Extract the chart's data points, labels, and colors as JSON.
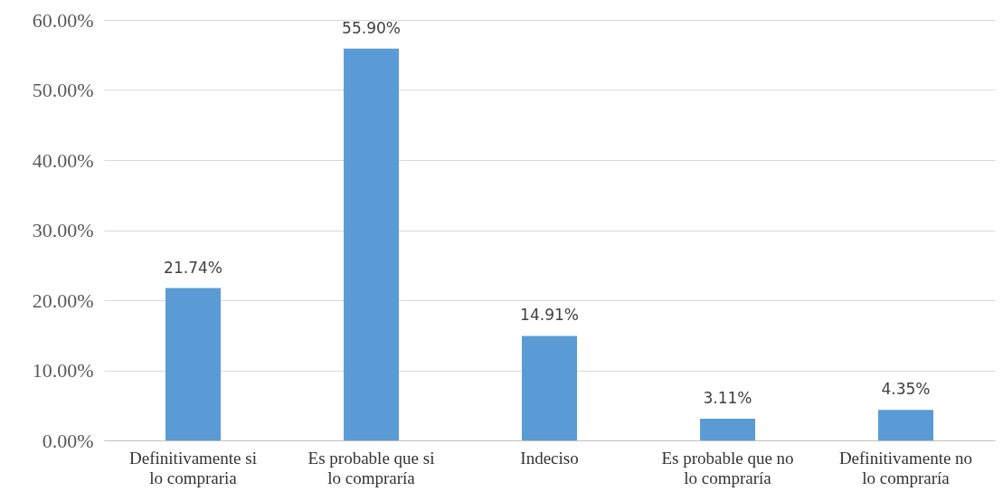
{
  "chart_data": {
    "type": "bar",
    "categories": [
      "Definitivamente si lo compraria",
      "Es probable que si lo compraría",
      "Indeciso",
      "Es probable que no lo compraría",
      "Definitivamente no lo compraría"
    ],
    "values": [
      21.74,
      55.9,
      14.91,
      3.11,
      4.35
    ],
    "value_labels": [
      "21.74%",
      "55.90%",
      "14.91%",
      "3.11%",
      "4.35%"
    ],
    "color": "#5b9bd5",
    "ylim": [
      0,
      60
    ],
    "yticks": [
      {
        "value": 0,
        "label": "0.00%"
      },
      {
        "value": 10,
        "label": "10.00%"
      },
      {
        "value": 20,
        "label": "20.00%"
      },
      {
        "value": 30,
        "label": "30.00%"
      },
      {
        "value": 40,
        "label": "40.00%"
      },
      {
        "value": 50,
        "label": "50.00%"
      },
      {
        "value": 60,
        "label": "60.00%"
      }
    ],
    "grid": "y"
  }
}
